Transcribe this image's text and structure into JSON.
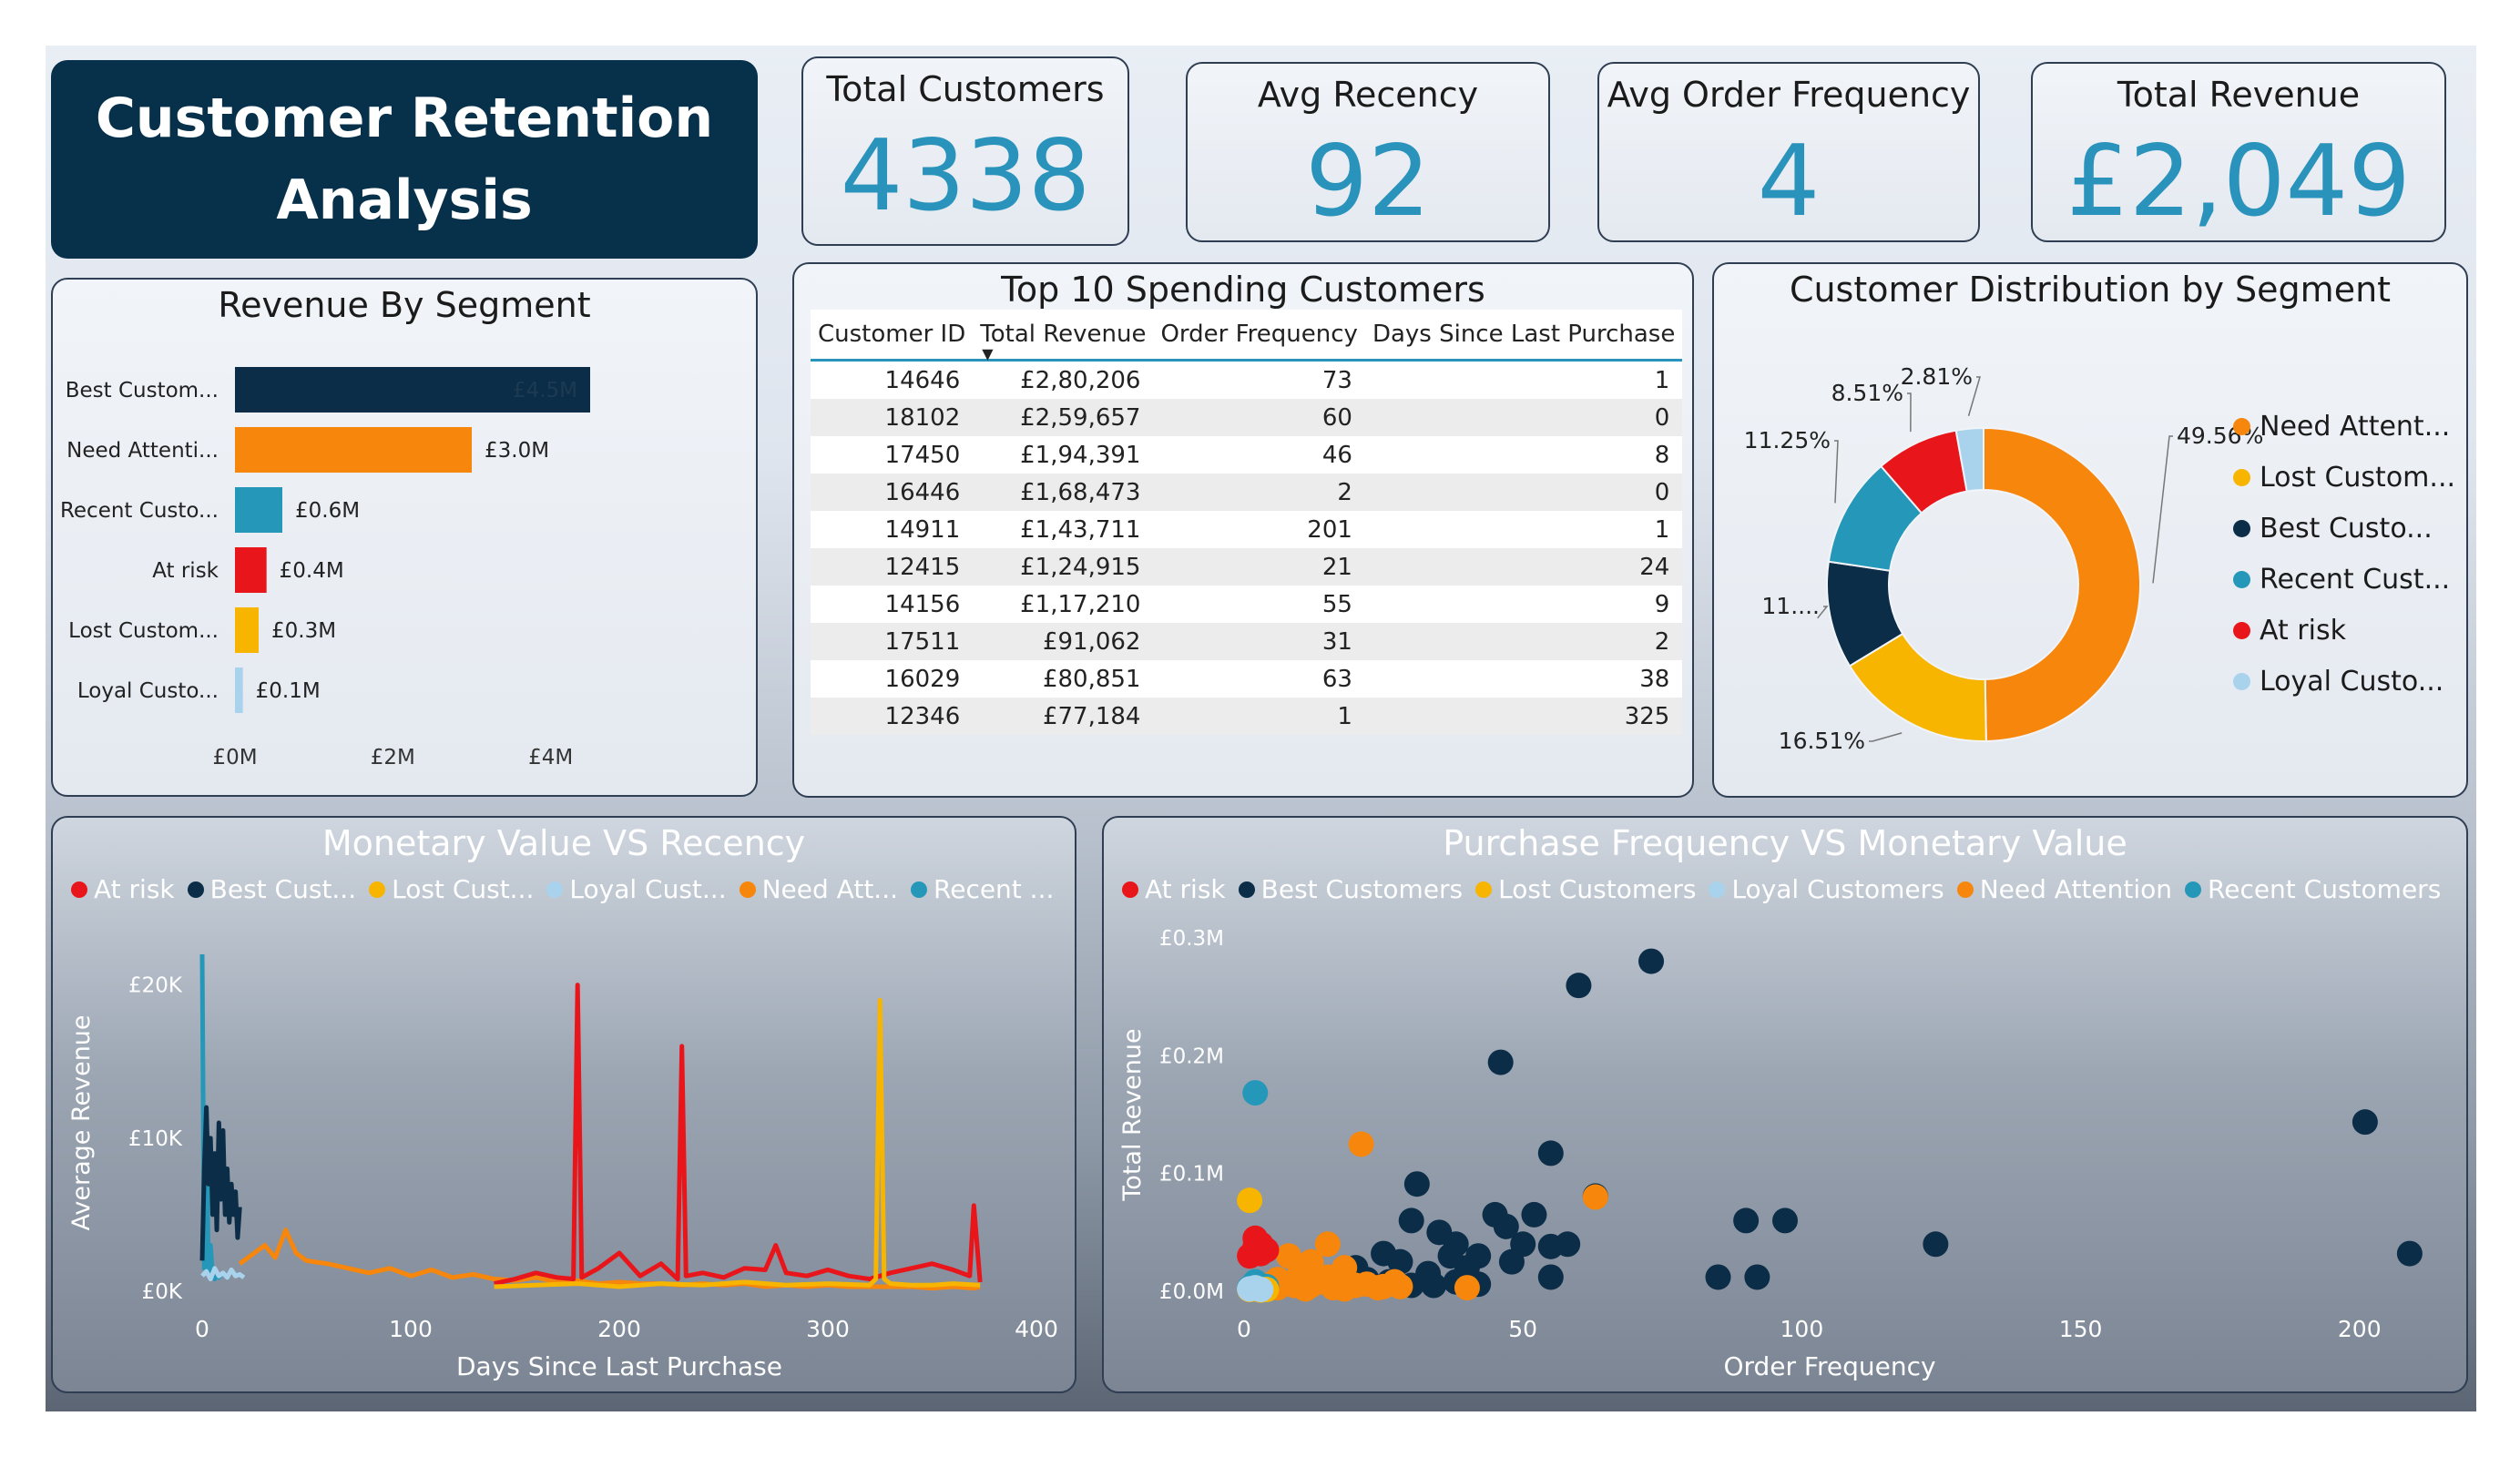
{
  "title": {
    "line1": "Customer Retention",
    "line2": "Analysis"
  },
  "kpis": [
    {
      "label": "Total Customers",
      "value": "4338"
    },
    {
      "label": "Avg Recency",
      "value": "92"
    },
    {
      "label": "Avg Order Frequency",
      "value": "4"
    },
    {
      "label": "Total Revenue",
      "value": "£2,049"
    }
  ],
  "colors": {
    "at_risk": "#e8161b",
    "best": "#0b2d47",
    "lost": "#f7b500",
    "loyal": "#a9d3ec",
    "need_attention": "#f7860c",
    "recent": "#2597b9",
    "kpi_value": "#2a93bb"
  },
  "table": {
    "title": "Top 10 Spending Customers",
    "headers": [
      "Customer ID",
      "Total Revenue",
      "Order Frequency",
      "Days Since Last Purchase"
    ],
    "sort_icon": "sort-descending-icon",
    "rows": [
      [
        "14646",
        "£2,80,206",
        "73",
        "1"
      ],
      [
        "18102",
        "£2,59,657",
        "60",
        "0"
      ],
      [
        "17450",
        "£1,94,391",
        "46",
        "8"
      ],
      [
        "16446",
        "£1,68,473",
        "2",
        "0"
      ],
      [
        "14911",
        "£1,43,711",
        "201",
        "1"
      ],
      [
        "12415",
        "£1,24,915",
        "21",
        "24"
      ],
      [
        "14156",
        "£1,17,210",
        "55",
        "9"
      ],
      [
        "17511",
        "£91,062",
        "31",
        "2"
      ],
      [
        "16029",
        "£80,851",
        "63",
        "38"
      ],
      [
        "12346",
        "£77,184",
        "1",
        "325"
      ]
    ]
  },
  "chart_data": [
    {
      "type": "bar",
      "orientation": "horizontal",
      "title": "Revenue By Segment",
      "categories": [
        "Best Custom...",
        "Need Attenti...",
        "Recent Custo...",
        "At risk",
        "Lost Custom...",
        "Loyal Custo..."
      ],
      "values": [
        4.5,
        3.0,
        0.6,
        0.4,
        0.3,
        0.1
      ],
      "value_unit": "£M",
      "data_labels": [
        "£4.5M",
        "£3.0M",
        "£0.6M",
        "£0.4M",
        "£0.3M",
        "£0.1M"
      ],
      "xticks": [
        "£0M",
        "£2M",
        "£4M"
      ],
      "xlim": [
        0,
        5
      ],
      "grid": false
    },
    {
      "type": "pie",
      "variant": "donut",
      "title": "Customer Distribution by Segment",
      "labels": [
        "Need Attent...",
        "Lost Custom...",
        "Best Custo...",
        "Recent Cust...",
        "At risk",
        "Loyal Custo..."
      ],
      "values": [
        49.56,
        16.51,
        11.0,
        11.25,
        8.51,
        2.81
      ],
      "data_labels": [
        "49.56%",
        "16.51%",
        "11....",
        "11.25%",
        "8.51%",
        "2.81%"
      ],
      "legend": "right"
    },
    {
      "type": "line",
      "title": "Monetary Value VS Recency",
      "xlabel": "Days Since Last Purchase",
      "ylabel": "Average Revenue",
      "xlim": [
        0,
        400
      ],
      "ylim": [
        0,
        22000
      ],
      "xticks": [
        "0",
        "100",
        "200",
        "300",
        "400"
      ],
      "yticks": [
        "£0K",
        "£10K",
        "£20K"
      ],
      "legend_labels": [
        "At risk",
        "Best Cust...",
        "Lost Cust...",
        "Loyal Cust...",
        "Need Att...",
        "Recent ..."
      ],
      "legend": "top-left",
      "grid": false,
      "series": [
        {
          "name": "Recent ...",
          "x": [
            0,
            1,
            2,
            3,
            4,
            5,
            6,
            7,
            8,
            9,
            10
          ],
          "y": [
            22000,
            1500,
            12000,
            1200,
            3000,
            1000,
            800,
            1200,
            900,
            1100,
            1000
          ]
        },
        {
          "name": "Best Cust...",
          "x": [
            0,
            1,
            2,
            3,
            4,
            5,
            6,
            7,
            8,
            9,
            10,
            11,
            12,
            13,
            14,
            15,
            16,
            17,
            18
          ],
          "y": [
            2000,
            8000,
            12000,
            7000,
            10000,
            5000,
            9000,
            4000,
            11000,
            6000,
            10500,
            5000,
            8000,
            4500,
            7000,
            5000,
            6500,
            3500,
            5500
          ]
        },
        {
          "name": "Loyal Cust...",
          "x": [
            0,
            2,
            4,
            6,
            8,
            10,
            12,
            14,
            16,
            18,
            20
          ],
          "y": [
            1000,
            1300,
            800,
            1500,
            1000,
            1200,
            900,
            1400,
            1000,
            1100,
            900
          ]
        },
        {
          "name": "Need Att...",
          "x": [
            18,
            25,
            30,
            35,
            40,
            45,
            50,
            60,
            70,
            80,
            90,
            100,
            110,
            120,
            130,
            140,
            150,
            160,
            170,
            180,
            190,
            200,
            210,
            220,
            230,
            240,
            250,
            260,
            270,
            280,
            290,
            300,
            310,
            320,
            330,
            340,
            350,
            360,
            370,
            373
          ],
          "y": [
            1800,
            2500,
            3000,
            2200,
            4000,
            2500,
            2000,
            1800,
            1500,
            1200,
            1500,
            1000,
            1400,
            900,
            1100,
            800,
            700,
            900,
            600,
            700,
            500,
            600,
            500,
            500,
            400,
            500,
            400,
            500,
            300,
            400,
            300,
            400,
            300,
            300,
            300,
            300,
            200,
            300,
            200,
            300
          ]
        },
        {
          "name": "At risk",
          "x": [
            140,
            150,
            160,
            170,
            178,
            180,
            182,
            190,
            200,
            210,
            220,
            228,
            230,
            232,
            240,
            250,
            260,
            270,
            275,
            280,
            290,
            300,
            310,
            320,
            330,
            340,
            350,
            360,
            368,
            370,
            373
          ],
          "y": [
            500,
            800,
            1200,
            900,
            800,
            20000,
            900,
            1500,
            2500,
            1000,
            1800,
            800,
            16000,
            1000,
            1200,
            900,
            1500,
            1400,
            3000,
            1200,
            1000,
            1400,
            1000,
            800,
            1200,
            1500,
            1800,
            1400,
            1000,
            5600,
            600
          ]
        },
        {
          "name": "Lost Cust...",
          "x": [
            140,
            160,
            180,
            200,
            220,
            240,
            260,
            280,
            300,
            320,
            323,
            325,
            327,
            330,
            340,
            350,
            360,
            373
          ],
          "y": [
            300,
            400,
            500,
            300,
            500,
            400,
            600,
            400,
            500,
            400,
            800,
            19000,
            800,
            500,
            400,
            400,
            500,
            400
          ]
        }
      ]
    },
    {
      "type": "scatter",
      "title": "Purchase Frequency VS Monetary Value",
      "xlabel": "Order Frequency",
      "ylabel": "Total Revenue",
      "xlim": [
        0,
        210
      ],
      "ylim": [
        0,
        300000
      ],
      "xticks": [
        "0",
        "50",
        "100",
        "150",
        "200"
      ],
      "yticks": [
        "£0.0M",
        "£0.1M",
        "£0.2M",
        "£0.3M"
      ],
      "legend_labels": [
        "At risk",
        "Best Customers",
        "Lost Customers",
        "Loyal Customers",
        "Need Attention",
        "Recent Customers"
      ],
      "legend": "top-left",
      "grid": false,
      "series": [
        {
          "name": "Best Customers",
          "points": [
            [
              73,
              280206
            ],
            [
              60,
              259657
            ],
            [
              46,
              194391
            ],
            [
              201,
              143711
            ],
            [
              55,
              117210
            ],
            [
              31,
              91062
            ],
            [
              63,
              80851
            ],
            [
              30,
              60000
            ],
            [
              35,
              50000
            ],
            [
              38,
              40000
            ],
            [
              42,
              30000
            ],
            [
              45,
              65000
            ],
            [
              47,
              55000
            ],
            [
              50,
              40000
            ],
            [
              52,
              65000
            ],
            [
              55,
              38000
            ],
            [
              58,
              40000
            ],
            [
              90,
              60000
            ],
            [
              97,
              60000
            ],
            [
              85,
              12000
            ],
            [
              92,
              12000
            ],
            [
              124,
              40000
            ],
            [
              209,
              32000
            ],
            [
              48,
              25000
            ],
            [
              55,
              12000
            ],
            [
              40,
              20000
            ],
            [
              37,
              30000
            ],
            [
              33,
              15000
            ],
            [
              28,
              25000
            ],
            [
              25,
              32000
            ],
            [
              22,
              10000
            ],
            [
              26,
              8000
            ],
            [
              30,
              5000
            ],
            [
              34,
              5000
            ],
            [
              38,
              8000
            ],
            [
              42,
              6000
            ],
            [
              20,
              20000
            ],
            [
              18,
              15000
            ],
            [
              16,
              5000
            ]
          ]
        },
        {
          "name": "Need Attention",
          "points": [
            [
              21,
              124915
            ],
            [
              63,
              80000
            ],
            [
              15,
              40000
            ],
            [
              8,
              30000
            ],
            [
              12,
              25000
            ],
            [
              18,
              20000
            ],
            [
              10,
              15000
            ],
            [
              6,
              10000
            ],
            [
              14,
              8000
            ],
            [
              20,
              5000
            ],
            [
              24,
              3000
            ],
            [
              27,
              8000
            ],
            [
              40,
              3000
            ],
            [
              4,
              5000
            ],
            [
              2,
              3000
            ],
            [
              9,
              5000
            ],
            [
              16,
              3000
            ],
            [
              22,
              6000
            ],
            [
              25,
              4000
            ],
            [
              12,
              5000
            ],
            [
              6,
              3000
            ],
            [
              18,
              2000
            ],
            [
              11,
              2000
            ],
            [
              28,
              4000
            ],
            [
              3,
              2000
            ],
            [
              15,
              12000
            ]
          ]
        },
        {
          "name": "Recent Customers",
          "points": [
            [
              2,
              168473
            ],
            [
              2,
              8000
            ],
            [
              3,
              5000
            ],
            [
              1,
              3000
            ],
            [
              4,
              4000
            ]
          ]
        },
        {
          "name": "Lost Customers",
          "points": [
            [
              1,
              77184
            ],
            [
              2,
              2000
            ],
            [
              3,
              1000
            ],
            [
              1,
              1500
            ],
            [
              4,
              1500
            ]
          ]
        },
        {
          "name": "At risk",
          "points": [
            [
              3,
              40000
            ],
            [
              2,
              45000
            ],
            [
              4,
              35000
            ],
            [
              1,
              30000
            ],
            [
              3,
              32000
            ],
            [
              2,
              38000
            ]
          ]
        },
        {
          "name": "Loyal Customers",
          "points": [
            [
              1,
              2000
            ],
            [
              2,
              3000
            ],
            [
              3,
              1500
            ]
          ]
        }
      ]
    }
  ]
}
